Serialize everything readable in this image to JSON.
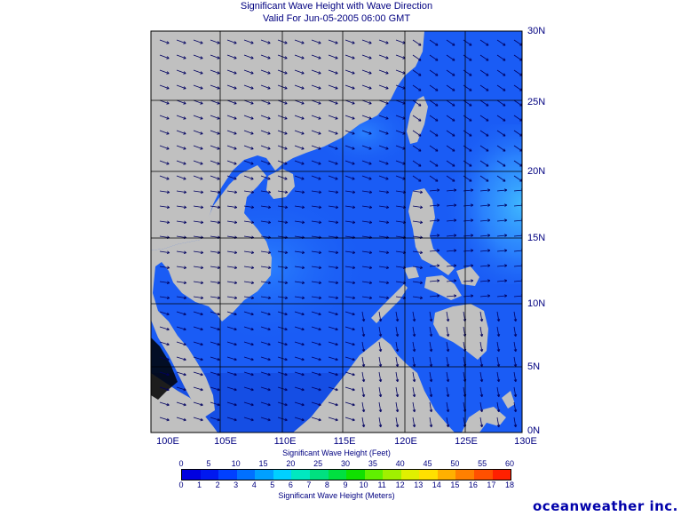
{
  "title": "Significant Wave Height with Wave Direction",
  "subtitle": "Valid For Jun-05-2005 06:00 GMT",
  "lat_labels": [
    "30N",
    "25N",
    "20N",
    "15N",
    "10N",
    "5N",
    "0N"
  ],
  "lon_labels": [
    "100E",
    "105E",
    "110E",
    "115E",
    "120E",
    "125E",
    "130E"
  ],
  "feet_title": "Significant Wave Height (Feet)",
  "meters_title": "Significant Wave Height (Meters)",
  "feet_ticks": [
    "0",
    "5",
    "10",
    "15",
    "20",
    "25",
    "30",
    "35",
    "40",
    "45",
    "50",
    "55",
    "60"
  ],
  "meter_ticks": [
    "0",
    "1",
    "2",
    "3",
    "4",
    "5",
    "6",
    "7",
    "8",
    "9",
    "10",
    "11",
    "12",
    "13",
    "14",
    "15",
    "16",
    "17",
    "18"
  ],
  "colorbar_colors": [
    "#0000e0",
    "#0018f0",
    "#0040ff",
    "#0070ff",
    "#00a0ff",
    "#00d0ff",
    "#00e8c0",
    "#00e080",
    "#00e040",
    "#10e000",
    "#60f000",
    "#a0f000",
    "#e0f000",
    "#ffe000",
    "#ffb000",
    "#ff8000",
    "#ff5000",
    "#ff2000"
  ],
  "colors": {
    "land": "#c0c0c0",
    "sea_base": "#1a5cf5",
    "sea_light": "#2f8cff",
    "grid": "#000000",
    "text": "#000080"
  },
  "brand": "oceanweather inc."
}
